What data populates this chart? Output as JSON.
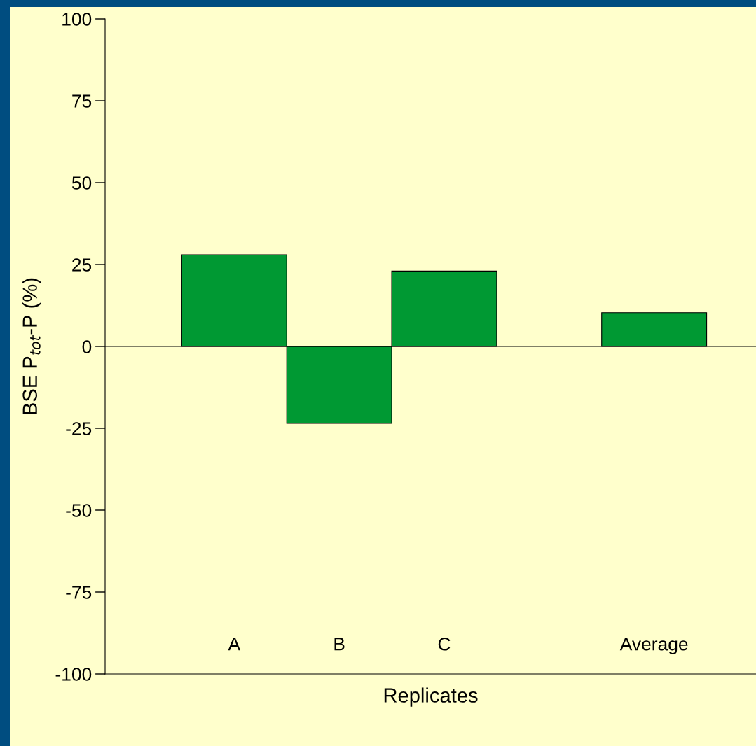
{
  "chart_data": {
    "type": "bar",
    "xlabel": "Replicates",
    "ylabel": "BSE P$_{tot}$-P (%)",
    "categories": [
      "A",
      "B",
      "C",
      null,
      "Average"
    ],
    "values": [
      28,
      -23.5,
      23,
      null,
      10.3
    ],
    "color": "#009933",
    "ylim": [
      -100,
      100
    ],
    "yticks": [
      -100,
      -75,
      -50,
      -25,
      0,
      25,
      50,
      75,
      100
    ],
    "ref_lines": [
      {
        "axis": "y",
        "value": 0,
        "color": "#000000"
      }
    ],
    "grid": false,
    "legend": false
  }
}
